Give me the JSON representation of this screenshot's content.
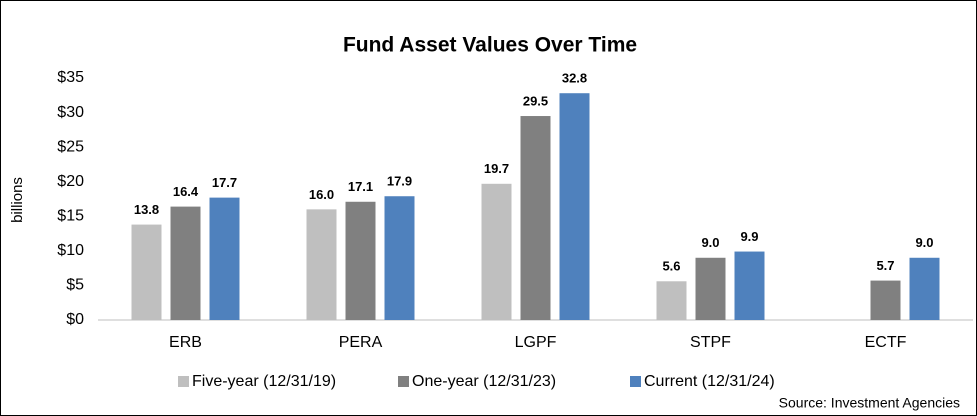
{
  "chart_data": {
    "type": "bar",
    "title": "Fund Asset Values Over Time",
    "y_label": "billions",
    "categories": [
      "ERB",
      "PERA",
      "LGPF",
      "STPF",
      "ECTF"
    ],
    "series": [
      {
        "name": "Five-year (12/31/19)",
        "color": "#bfbfbf",
        "values": [
          13.8,
          16.0,
          19.7,
          5.6,
          null
        ],
        "value_labels": [
          "13.8",
          "16.0",
          "19.7",
          "5.6",
          null
        ]
      },
      {
        "name": "One-year (12/31/23)",
        "color": "#808080",
        "values": [
          16.4,
          17.1,
          29.5,
          9.0,
          5.7
        ],
        "value_labels": [
          "16.4",
          "17.1",
          "29.5",
          "9.0",
          "5.7"
        ]
      },
      {
        "name": "Current (12/31/24)",
        "color": "#4f81bd",
        "values": [
          17.7,
          17.9,
          32.8,
          9.9,
          9.0
        ],
        "value_labels": [
          "17.7",
          "17.9",
          "32.8",
          "9.9",
          "9.0"
        ]
      }
    ],
    "ylim": [
      0,
      35
    ],
    "yticks": [
      {
        "value": 0,
        "label": "$0"
      },
      {
        "value": 5,
        "label": "$5"
      },
      {
        "value": 10,
        "label": "$10"
      },
      {
        "value": 15,
        "label": "$15"
      },
      {
        "value": 20,
        "label": "$20"
      },
      {
        "value": 25,
        "label": "$25"
      },
      {
        "value": 30,
        "label": "$30"
      },
      {
        "value": 35,
        "label": "$35"
      }
    ],
    "grid": false,
    "legend": "bottom",
    "source": "Source: Investment Agencies"
  }
}
